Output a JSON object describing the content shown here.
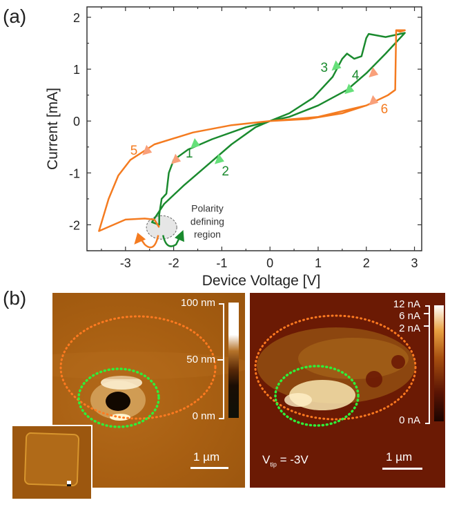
{
  "panels": {
    "a_label": "(a)",
    "b_label": "(b)"
  },
  "chart_data": {
    "type": "line",
    "title": "",
    "xlabel": "Device Voltage [V]",
    "ylabel": "Current [mA]",
    "xlim": [
      -3.8,
      3.15
    ],
    "ylim": [
      -2.5,
      2.2
    ],
    "xticks": [
      -3,
      -2,
      -1,
      0,
      1,
      2,
      3
    ],
    "yticks": [
      -2,
      -1,
      0,
      1,
      2
    ],
    "xtick_labels": [
      "-3",
      "-2",
      "-1",
      "0",
      "1",
      "2",
      "3"
    ],
    "ytick_labels": [
      "-2",
      "-1",
      "0",
      "1",
      "2"
    ],
    "grid": false,
    "series": [
      {
        "name": "green sweep",
        "color": "#1a8a2e",
        "points": [
          [
            0,
            0
          ],
          [
            -0.5,
            -0.12
          ],
          [
            -1.2,
            -0.35
          ],
          [
            -1.7,
            -0.55
          ],
          [
            -2.0,
            -0.75
          ],
          [
            -2.1,
            -1.0
          ],
          [
            -2.15,
            -1.4
          ],
          [
            -2.25,
            -1.5
          ],
          [
            -2.3,
            -1.8
          ],
          [
            -2.3,
            -2.0
          ],
          [
            -2.45,
            -1.95
          ],
          [
            -2.2,
            -1.6
          ],
          [
            -1.8,
            -1.25
          ],
          [
            -1.3,
            -0.85
          ],
          [
            -0.8,
            -0.45
          ],
          [
            -0.3,
            -0.12
          ],
          [
            0,
            0
          ],
          [
            0.4,
            0.15
          ],
          [
            0.9,
            0.45
          ],
          [
            1.3,
            0.85
          ],
          [
            1.5,
            1.2
          ],
          [
            1.6,
            1.3
          ],
          [
            1.75,
            1.2
          ],
          [
            1.9,
            1.25
          ],
          [
            2.0,
            1.6
          ],
          [
            2.05,
            1.68
          ],
          [
            2.4,
            1.62
          ],
          [
            2.8,
            1.7
          ],
          [
            2.4,
            1.3
          ],
          [
            2.0,
            0.92
          ],
          [
            1.6,
            0.6
          ],
          [
            1.0,
            0.3
          ],
          [
            0.4,
            0.08
          ],
          [
            0,
            0
          ]
        ]
      },
      {
        "name": "orange sweep",
        "color": "#f47b20",
        "points": [
          [
            0,
            0
          ],
          [
            0.8,
            0.04
          ],
          [
            1.5,
            0.15
          ],
          [
            2.0,
            0.3
          ],
          [
            2.45,
            0.5
          ],
          [
            2.6,
            0.6
          ],
          [
            2.62,
            1.75
          ],
          [
            2.7,
            1.72
          ],
          [
            2.8,
            1.75
          ],
          [
            2.62,
            1.75
          ],
          [
            2.6,
            0.6
          ],
          [
            2.45,
            0.5
          ],
          [
            2.0,
            0.3
          ],
          [
            1.0,
            0.08
          ],
          [
            0,
            0
          ],
          [
            -0.8,
            -0.08
          ],
          [
            -1.6,
            -0.22
          ],
          [
            -2.4,
            -0.45
          ],
          [
            -2.9,
            -0.75
          ],
          [
            -3.15,
            -1.05
          ],
          [
            -3.35,
            -1.5
          ],
          [
            -3.55,
            -2.12
          ],
          [
            -3.0,
            -1.9
          ],
          [
            -2.6,
            -1.88
          ],
          [
            -2.4,
            -1.9
          ],
          [
            -2.3,
            -2.05
          ]
        ]
      }
    ],
    "arrows": [
      {
        "label": "1",
        "color": "#66e07a",
        "x": -1.55,
        "y": -0.45
      },
      {
        "label": "2",
        "color": "#66e07a",
        "x": -1.05,
        "y": -0.75
      },
      {
        "label": "3",
        "color": "#66e07a",
        "x": 1.38,
        "y": 1.05
      },
      {
        "label": "4",
        "color": "#66e07a",
        "x": 1.65,
        "y": 0.6
      },
      {
        "label": "5",
        "color": "#f9a07a",
        "x": -2.55,
        "y": -0.58
      },
      {
        "label": "6",
        "color": "#f9a07a",
        "x": 2.15,
        "y": 0.38
      },
      {
        "label": "",
        "color": "#f9a07a",
        "x": 2.15,
        "y": 0.92
      },
      {
        "label": "",
        "color": "#f9a07a",
        "x": -1.95,
        "y": -0.75
      }
    ],
    "annotations": [
      {
        "text": "Polarity",
        "x": -1.3,
        "y": -1.75
      },
      {
        "text": "defining",
        "x": -1.3,
        "y": -2.0
      },
      {
        "text": "region",
        "x": -1.3,
        "y": -2.25
      }
    ],
    "label_positions": [
      {
        "text": "1",
        "x": -1.75,
        "y": -0.7,
        "color": "#1a8a2e"
      },
      {
        "text": "2",
        "x": -1.0,
        "y": -1.05,
        "color": "#1a8a2e"
      },
      {
        "text": "3",
        "x": 1.05,
        "y": 0.95,
        "color": "#1a8a2e"
      },
      {
        "text": "4",
        "x": 1.7,
        "y": 0.8,
        "color": "#1a8a2e"
      },
      {
        "text": "5",
        "x": -2.9,
        "y": -0.65,
        "color": "#f47b20"
      },
      {
        "text": "6",
        "x": 2.3,
        "y": 0.15,
        "color": "#f47b20"
      }
    ]
  },
  "afm_topography": {
    "colorbar_labels": [
      "100 nm",
      "50 nm",
      "0 nm"
    ],
    "scale_bar": "1 µm"
  },
  "afm_current": {
    "colorbar_labels": [
      "12 nA",
      "6 nA",
      "2 nA",
      "0 nA"
    ],
    "scale_bar": "1 µm",
    "vtip_main": "V",
    "vtip_sub": "tip",
    "vtip_value": " = -3V"
  }
}
